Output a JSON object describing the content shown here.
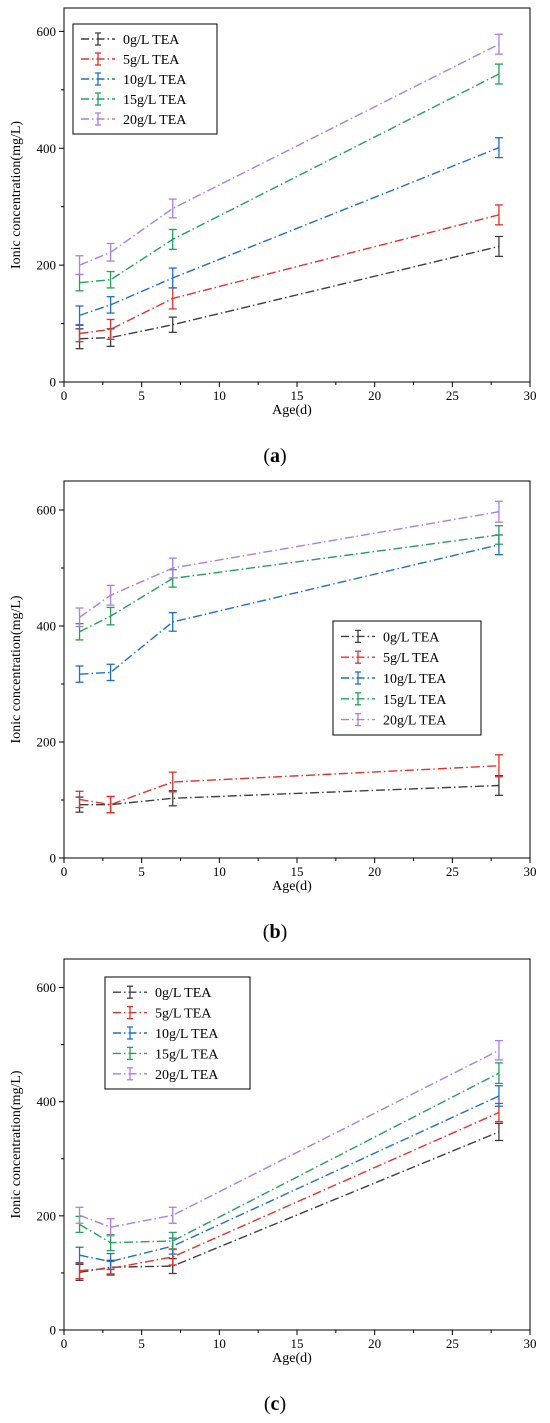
{
  "chart_data": [
    {
      "type": "line",
      "caption": "a",
      "xlabel": "Age(d)",
      "ylabel": "Ionic concentration(mg/L)",
      "xlim": [
        0,
        30
      ],
      "ylim": [
        0,
        640
      ],
      "xticks": [
        0,
        5,
        10,
        15,
        20,
        25,
        30
      ],
      "yticks": [
        0,
        200,
        400,
        600
      ],
      "grid": false,
      "legend_position": "top-left",
      "x": [
        1,
        3,
        7,
        28
      ],
      "series": [
        {
          "name": "0g/L TEA",
          "color": "#3f3f3f",
          "values": [
            74,
            76,
            98,
            232
          ],
          "errors": [
            17,
            15,
            13,
            17
          ]
        },
        {
          "name": "5g/L TEA",
          "color": "#e8302a",
          "values": [
            83,
            90,
            143,
            286
          ],
          "errors": [
            14,
            17,
            18,
            17
          ]
        },
        {
          "name": "10g/L TEA",
          "color": "#1f6fd0",
          "values": [
            114,
            132,
            178,
            401
          ],
          "errors": [
            16,
            14,
            17,
            17
          ]
        },
        {
          "name": "15g/L TEA",
          "color": "#24a15a",
          "values": [
            170,
            175,
            244,
            527
          ],
          "errors": [
            14,
            14,
            17,
            17
          ]
        },
        {
          "name": "20g/L TEA",
          "color": "#b07ce8",
          "values": [
            200,
            222,
            297,
            578
          ],
          "errors": [
            16,
            15,
            16,
            17
          ]
        }
      ]
    },
    {
      "type": "line",
      "caption": "b",
      "xlabel": "Age(d)",
      "ylabel": "Ionic concentration(mg/L)",
      "xlim": [
        0,
        30
      ],
      "ylim": [
        0,
        650
      ],
      "xticks": [
        0,
        5,
        10,
        15,
        20,
        25,
        30
      ],
      "yticks": [
        0,
        200,
        400,
        600
      ],
      "grid": false,
      "legend_position": "center-right",
      "x": [
        1,
        3,
        7,
        28
      ],
      "series": [
        {
          "name": "0g/L TEA",
          "color": "#3f3f3f",
          "values": [
            92,
            92,
            103,
            125
          ],
          "errors": [
            13,
            14,
            13,
            17
          ]
        },
        {
          "name": "5g/L TEA",
          "color": "#e8302a",
          "values": [
            101,
            92,
            131,
            159
          ],
          "errors": [
            14,
            14,
            17,
            19
          ]
        },
        {
          "name": "10g/L TEA",
          "color": "#1f6fd0",
          "values": [
            317,
            320,
            407,
            540
          ],
          "errors": [
            14,
            14,
            16,
            17
          ]
        },
        {
          "name": "15g/L TEA",
          "color": "#24a15a",
          "values": [
            390,
            417,
            482,
            557
          ],
          "errors": [
            14,
            15,
            15,
            16
          ]
        },
        {
          "name": "20g/L TEA",
          "color": "#b07ce8",
          "values": [
            415,
            453,
            500,
            597
          ],
          "errors": [
            16,
            17,
            17,
            18
          ]
        }
      ]
    },
    {
      "type": "line",
      "caption": "c",
      "xlabel": "Age(d)",
      "ylabel": "Ionic concentration(mg/L)",
      "xlim": [
        0,
        30
      ],
      "ylim": [
        0,
        650
      ],
      "xticks": [
        0,
        5,
        10,
        15,
        20,
        25,
        30
      ],
      "yticks": [
        0,
        200,
        400,
        600
      ],
      "grid": false,
      "legend_position": "top-left",
      "x": [
        1,
        3,
        7,
        28
      ],
      "series": [
        {
          "name": "0g/L TEA",
          "color": "#3f3f3f",
          "values": [
            101,
            110,
            112,
            347
          ],
          "errors": [
            14,
            12,
            13,
            15
          ]
        },
        {
          "name": "5g/L TEA",
          "color": "#e8302a",
          "values": [
            104,
            108,
            128,
            381
          ],
          "errors": [
            14,
            12,
            14,
            16
          ]
        },
        {
          "name": "10g/L TEA",
          "color": "#1f6fd0",
          "values": [
            131,
            120,
            147,
            410
          ],
          "errors": [
            14,
            14,
            14,
            18
          ]
        },
        {
          "name": "15g/L TEA",
          "color": "#24a15a",
          "values": [
            185,
            153,
            156,
            450
          ],
          "errors": [
            14,
            14,
            15,
            18
          ]
        },
        {
          "name": "20g/L TEA",
          "color": "#b07ce8",
          "values": [
            201,
            180,
            201,
            490
          ],
          "errors": [
            14,
            15,
            14,
            17
          ]
        }
      ]
    }
  ],
  "captions": [
    "(a)",
    "(b)",
    "(c)"
  ]
}
